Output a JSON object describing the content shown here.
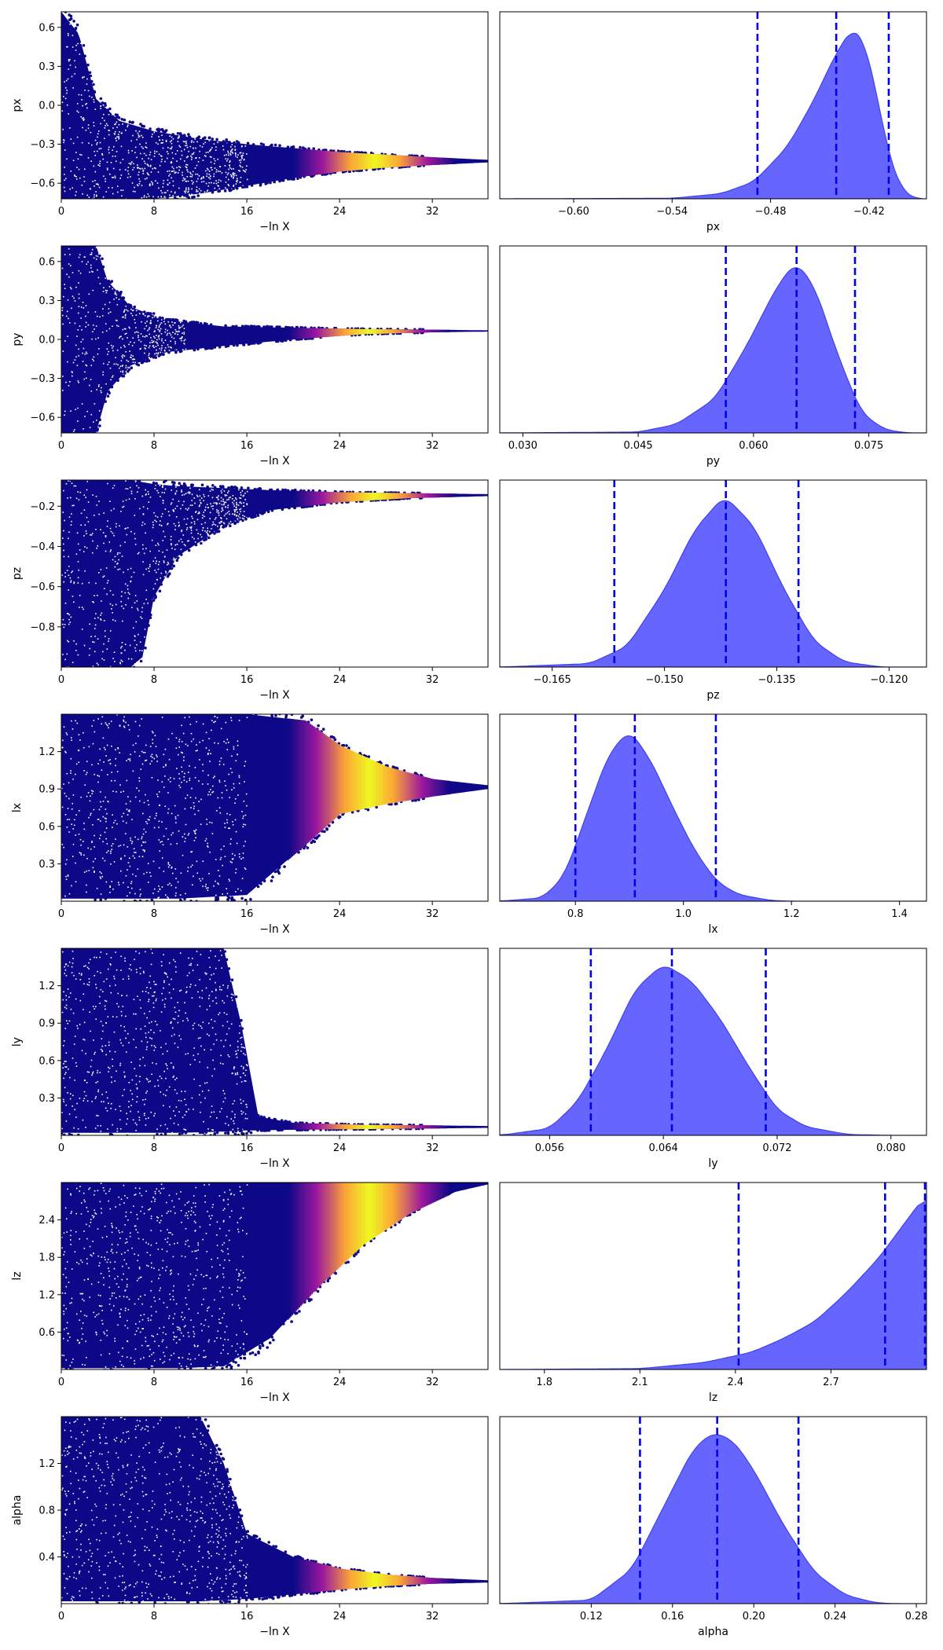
{
  "colors": {
    "trace_low": "#0d0887",
    "trace_mid": "#9c179e",
    "trace_high": "#f0f921",
    "posterior_fill": "#6666ff",
    "posterior_line": "#4040f0",
    "quantile_line": "#0000ee"
  },
  "chart_data": [
    {
      "type": "scatter",
      "param": "px",
      "xlabel": "−ln X",
      "ylabel": "px",
      "xlim": [
        0,
        36.8
      ],
      "ylim": [
        -0.72,
        0.72
      ],
      "xticks": [
        0,
        8,
        16,
        24,
        32
      ],
      "xtick_labels": [
        "0",
        "8",
        "16",
        "24",
        "32"
      ],
      "yticks": [
        -0.6,
        -0.3,
        0.0,
        0.3,
        0.6
      ],
      "ytick_labels": [
        "−0.6",
        "−0.3",
        "0.0",
        "0.3",
        "0.6"
      ],
      "envelope": [
        [
          0,
          -0.72,
          0.72
        ],
        [
          1.5,
          -0.72,
          0.55
        ],
        [
          3,
          -0.72,
          0.05
        ],
        [
          5,
          -0.72,
          -0.12
        ],
        [
          8,
          -0.72,
          -0.2
        ],
        [
          12,
          -0.68,
          -0.26
        ],
        [
          16,
          -0.62,
          -0.3
        ],
        [
          20,
          -0.56,
          -0.33
        ],
        [
          24,
          -0.51,
          -0.36
        ],
        [
          28,
          -0.48,
          -0.38
        ],
        [
          32,
          -0.46,
          -0.4
        ],
        [
          36.8,
          -0.44,
          -0.42
        ]
      ],
      "peak_x": 27
    },
    {
      "type": "area",
      "param": "px",
      "xlabel": "px",
      "xlim": [
        -0.645,
        -0.385
      ],
      "xticks": [
        -0.6,
        -0.54,
        -0.48,
        -0.42
      ],
      "xtick_labels": [
        "−0.60",
        "−0.54",
        "−0.48",
        "−0.42"
      ],
      "ymax": 1.09,
      "density": [
        [
          -0.645,
          0
        ],
        [
          -0.54,
          0.003
        ],
        [
          -0.51,
          0.03
        ],
        [
          -0.49,
          0.1
        ],
        [
          -0.47,
          0.3
        ],
        [
          -0.455,
          0.55
        ],
        [
          -0.44,
          0.85
        ],
        [
          -0.43,
          1.0
        ],
        [
          -0.423,
          0.93
        ],
        [
          -0.415,
          0.6
        ],
        [
          -0.408,
          0.25
        ],
        [
          -0.4,
          0.05
        ],
        [
          -0.392,
          0.0
        ]
      ],
      "quantiles": [
        -0.488,
        -0.44,
        -0.408
      ]
    },
    {
      "type": "scatter",
      "param": "py",
      "xlabel": "−ln X",
      "ylabel": "py",
      "xlim": [
        0,
        36.8
      ],
      "ylim": [
        -0.72,
        0.72
      ],
      "xticks": [
        0,
        8,
        16,
        24,
        32
      ],
      "xtick_labels": [
        "0",
        "8",
        "16",
        "24",
        "32"
      ],
      "yticks": [
        -0.6,
        -0.3,
        0.0,
        0.3,
        0.6
      ],
      "ytick_labels": [
        "−0.6",
        "−0.3",
        "0.0",
        "0.3",
        "0.6"
      ],
      "envelope": [
        [
          0,
          -0.72,
          0.72
        ],
        [
          3,
          -0.72,
          0.72
        ],
        [
          4,
          -0.4,
          0.45
        ],
        [
          6,
          -0.2,
          0.25
        ],
        [
          9,
          -0.1,
          0.15
        ],
        [
          14,
          -0.05,
          0.1
        ],
        [
          20,
          0.0,
          0.09
        ],
        [
          26,
          0.04,
          0.08
        ],
        [
          32,
          0.055,
          0.075
        ],
        [
          36.8,
          0.06,
          0.07
        ]
      ],
      "peak_x": 26.5
    },
    {
      "type": "area",
      "param": "py",
      "xlabel": "py",
      "xlim": [
        0.027,
        0.0825
      ],
      "xticks": [
        0.03,
        0.045,
        0.06,
        0.075
      ],
      "xtick_labels": [
        "0.030",
        "0.045",
        "0.060",
        "0.075"
      ],
      "ymax": 1.09,
      "density": [
        [
          0.027,
          0
        ],
        [
          0.045,
          0.005
        ],
        [
          0.05,
          0.05
        ],
        [
          0.055,
          0.2
        ],
        [
          0.059,
          0.5
        ],
        [
          0.063,
          0.85
        ],
        [
          0.0655,
          1.0
        ],
        [
          0.068,
          0.85
        ],
        [
          0.071,
          0.45
        ],
        [
          0.074,
          0.12
        ],
        [
          0.077,
          0.02
        ],
        [
          0.08,
          0.0
        ]
      ],
      "quantiles": [
        0.0564,
        0.0656,
        0.0732
      ]
    },
    {
      "type": "scatter",
      "param": "pz",
      "xlabel": "−ln X",
      "ylabel": "pz",
      "xlim": [
        0,
        36.8
      ],
      "ylim": [
        -1.0,
        -0.07
      ],
      "xticks": [
        0,
        8,
        16,
        24,
        32
      ],
      "xtick_labels": [
        "0",
        "8",
        "16",
        "24",
        "32"
      ],
      "yticks": [
        -0.8,
        -0.6,
        -0.4,
        -0.2
      ],
      "ytick_labels": [
        "−0.8",
        "−0.6",
        "−0.4",
        "−0.2"
      ],
      "envelope": [
        [
          0,
          -1.0,
          -0.07
        ],
        [
          6,
          -1.0,
          -0.07
        ],
        [
          7,
          -0.95,
          -0.08
        ],
        [
          8,
          -0.65,
          -0.09
        ],
        [
          10,
          -0.45,
          -0.1
        ],
        [
          14,
          -0.3,
          -0.11
        ],
        [
          18,
          -0.22,
          -0.12
        ],
        [
          24,
          -0.18,
          -0.13
        ],
        [
          30,
          -0.16,
          -0.135
        ],
        [
          36.8,
          -0.15,
          -0.14
        ]
      ],
      "peak_x": 27
    },
    {
      "type": "area",
      "param": "pz",
      "xlabel": "pz",
      "xlim": [
        -0.172,
        -0.115
      ],
      "xticks": [
        -0.165,
        -0.15,
        -0.135,
        -0.12
      ],
      "xtick_labels": [
        "−0.165",
        "−0.150",
        "−0.135",
        "−0.120"
      ],
      "ymax": 1.09,
      "density": [
        [
          -0.172,
          0
        ],
        [
          -0.16,
          0.02
        ],
        [
          -0.155,
          0.12
        ],
        [
          -0.15,
          0.45
        ],
        [
          -0.146,
          0.8
        ],
        [
          -0.142,
          1.0
        ],
        [
          -0.138,
          0.82
        ],
        [
          -0.134,
          0.45
        ],
        [
          -0.13,
          0.15
        ],
        [
          -0.126,
          0.03
        ],
        [
          -0.121,
          0.0
        ]
      ],
      "quantiles": [
        -0.1567,
        -0.1418,
        -0.1321
      ]
    },
    {
      "type": "scatter",
      "param": "lx",
      "xlabel": "−ln X",
      "ylabel": "lx",
      "xlim": [
        0,
        36.8
      ],
      "ylim": [
        0.0,
        1.5
      ],
      "xticks": [
        0,
        8,
        16,
        24,
        32
      ],
      "xtick_labels": [
        "0",
        "8",
        "16",
        "24",
        "32"
      ],
      "yticks": [
        0.3,
        0.6,
        0.9,
        1.2
      ],
      "ytick_labels": [
        "0.3",
        "0.6",
        "0.9",
        "1.2"
      ],
      "envelope": [
        [
          0,
          0.02,
          1.5
        ],
        [
          10,
          0.02,
          1.5
        ],
        [
          16,
          0.05,
          1.5
        ],
        [
          21,
          0.45,
          1.45
        ],
        [
          24,
          0.7,
          1.25
        ],
        [
          28,
          0.78,
          1.08
        ],
        [
          32,
          0.84,
          0.98
        ],
        [
          36.8,
          0.9,
          0.93
        ]
      ],
      "peak_x": 26.5
    },
    {
      "type": "area",
      "param": "lx",
      "xlabel": "lx",
      "xlim": [
        0.66,
        1.45
      ],
      "xticks": [
        0.8,
        1.0,
        1.2,
        1.4
      ],
      "xtick_labels": [
        "0.8",
        "1.0",
        "1.2",
        "1.4"
      ],
      "ymax": 1.09,
      "density": [
        [
          0.66,
          0
        ],
        [
          0.74,
          0.02
        ],
        [
          0.78,
          0.15
        ],
        [
          0.82,
          0.5
        ],
        [
          0.86,
          0.85
        ],
        [
          0.9,
          1.0
        ],
        [
          0.94,
          0.82
        ],
        [
          0.98,
          0.55
        ],
        [
          1.02,
          0.3
        ],
        [
          1.06,
          0.12
        ],
        [
          1.1,
          0.04
        ],
        [
          1.16,
          0.005
        ],
        [
          1.2,
          0.0
        ]
      ],
      "quantiles": [
        0.8,
        0.91,
        1.06
      ]
    },
    {
      "type": "scatter",
      "param": "ly",
      "xlabel": "−ln X",
      "ylabel": "ly",
      "xlim": [
        0,
        36.8
      ],
      "ylim": [
        0.0,
        1.5
      ],
      "xticks": [
        0,
        8,
        16,
        24,
        32
      ],
      "xtick_labels": [
        "0",
        "8",
        "16",
        "24",
        "32"
      ],
      "yticks": [
        0.3,
        0.6,
        0.9,
        1.2
      ],
      "ytick_labels": [
        "0.3",
        "0.6",
        "0.9",
        "1.2"
      ],
      "envelope": [
        [
          0,
          0.02,
          1.5
        ],
        [
          10,
          0.02,
          1.5
        ],
        [
          14,
          0.03,
          1.5
        ],
        [
          15.5,
          0.04,
          0.9
        ],
        [
          17,
          0.04,
          0.15
        ],
        [
          20,
          0.045,
          0.1
        ],
        [
          26,
          0.05,
          0.085
        ],
        [
          32,
          0.055,
          0.08
        ],
        [
          36.8,
          0.06,
          0.075
        ]
      ],
      "peak_x": 26.5
    },
    {
      "type": "area",
      "param": "ly",
      "xlabel": "ly",
      "xlim": [
        0.0525,
        0.0825
      ],
      "xticks": [
        0.056,
        0.064,
        0.072,
        0.08
      ],
      "xtick_labels": [
        "0.056",
        "0.064",
        "0.072",
        "0.080"
      ],
      "ymax": 1.09,
      "density": [
        [
          0.0525,
          0
        ],
        [
          0.056,
          0.04
        ],
        [
          0.058,
          0.2
        ],
        [
          0.06,
          0.5
        ],
        [
          0.062,
          0.85
        ],
        [
          0.064,
          1.0
        ],
        [
          0.066,
          0.9
        ],
        [
          0.068,
          0.68
        ],
        [
          0.07,
          0.4
        ],
        [
          0.072,
          0.15
        ],
        [
          0.074,
          0.05
        ],
        [
          0.077,
          0.005
        ],
        [
          0.08,
          0.0
        ]
      ],
      "quantiles": [
        0.0589,
        0.0646,
        0.0712
      ]
    },
    {
      "type": "scatter",
      "param": "lz",
      "xlabel": "−ln X",
      "ylabel": "lz",
      "xlim": [
        0,
        36.8
      ],
      "ylim": [
        0.0,
        3.0
      ],
      "xticks": [
        0,
        8,
        16,
        24,
        32
      ],
      "xtick_labels": [
        "0",
        "8",
        "16",
        "24",
        "32"
      ],
      "yticks": [
        0.6,
        1.2,
        1.8,
        2.4
      ],
      "ytick_labels": [
        "0.6",
        "1.2",
        "1.8",
        "2.4"
      ],
      "envelope": [
        [
          0,
          0.02,
          3.0
        ],
        [
          10,
          0.02,
          3.0
        ],
        [
          14,
          0.05,
          3.0
        ],
        [
          18,
          0.5,
          3.0
        ],
        [
          22,
          1.3,
          3.0
        ],
        [
          26,
          2.0,
          3.0
        ],
        [
          30,
          2.5,
          3.0
        ],
        [
          34,
          2.85,
          3.0
        ],
        [
          36.8,
          2.97,
          3.0
        ]
      ],
      "peak_x": 26.5
    },
    {
      "type": "area",
      "param": "lz",
      "xlabel": "lz",
      "xlim": [
        1.66,
        3.0
      ],
      "xticks": [
        1.8,
        2.1,
        2.4,
        2.7
      ],
      "xtick_labels": [
        "1.8",
        "2.1",
        "2.4",
        "2.7"
      ],
      "ymax": 1.09,
      "density": [
        [
          1.66,
          0
        ],
        [
          2.1,
          0.005
        ],
        [
          2.3,
          0.04
        ],
        [
          2.45,
          0.1
        ],
        [
          2.55,
          0.18
        ],
        [
          2.65,
          0.28
        ],
        [
          2.75,
          0.45
        ],
        [
          2.85,
          0.65
        ],
        [
          2.95,
          0.9
        ],
        [
          2.99,
          1.0
        ],
        [
          3.0,
          1.0
        ]
      ],
      "quantiles": [
        2.41,
        2.87,
        3.0
      ]
    },
    {
      "type": "scatter",
      "param": "alpha",
      "xlabel": "−ln X",
      "ylabel": "alpha",
      "xlim": [
        0,
        36.8
      ],
      "ylim": [
        0.0,
        1.6
      ],
      "xticks": [
        0,
        8,
        16,
        24,
        32
      ],
      "xtick_labels": [
        "0",
        "8",
        "16",
        "24",
        "32"
      ],
      "yticks": [
        0.4,
        0.8,
        1.2
      ],
      "ytick_labels": [
        "0.4",
        "0.8",
        "1.2"
      ],
      "envelope": [
        [
          0,
          0.02,
          1.6
        ],
        [
          12,
          0.02,
          1.6
        ],
        [
          14,
          0.03,
          1.2
        ],
        [
          16,
          0.04,
          0.6
        ],
        [
          20,
          0.08,
          0.4
        ],
        [
          24,
          0.12,
          0.3
        ],
        [
          28,
          0.15,
          0.25
        ],
        [
          32,
          0.17,
          0.22
        ],
        [
          36.8,
          0.18,
          0.2
        ]
      ],
      "peak_x": 27
    },
    {
      "type": "area",
      "param": "alpha",
      "xlabel": "alpha",
      "xlim": [
        0.075,
        0.285
      ],
      "xticks": [
        0.12,
        0.16,
        0.2,
        0.24,
        0.28
      ],
      "xtick_labels": [
        "0.12",
        "0.16",
        "0.20",
        "0.24",
        "0.28"
      ],
      "ymax": 1.09,
      "density": [
        [
          0.075,
          0
        ],
        [
          0.12,
          0.02
        ],
        [
          0.14,
          0.2
        ],
        [
          0.155,
          0.55
        ],
        [
          0.17,
          0.9
        ],
        [
          0.18,
          1.0
        ],
        [
          0.19,
          0.95
        ],
        [
          0.2,
          0.78
        ],
        [
          0.215,
          0.45
        ],
        [
          0.23,
          0.18
        ],
        [
          0.245,
          0.05
        ],
        [
          0.26,
          0.005
        ],
        [
          0.27,
          0.0
        ]
      ],
      "quantiles": [
        0.144,
        0.182,
        0.222
      ]
    }
  ]
}
